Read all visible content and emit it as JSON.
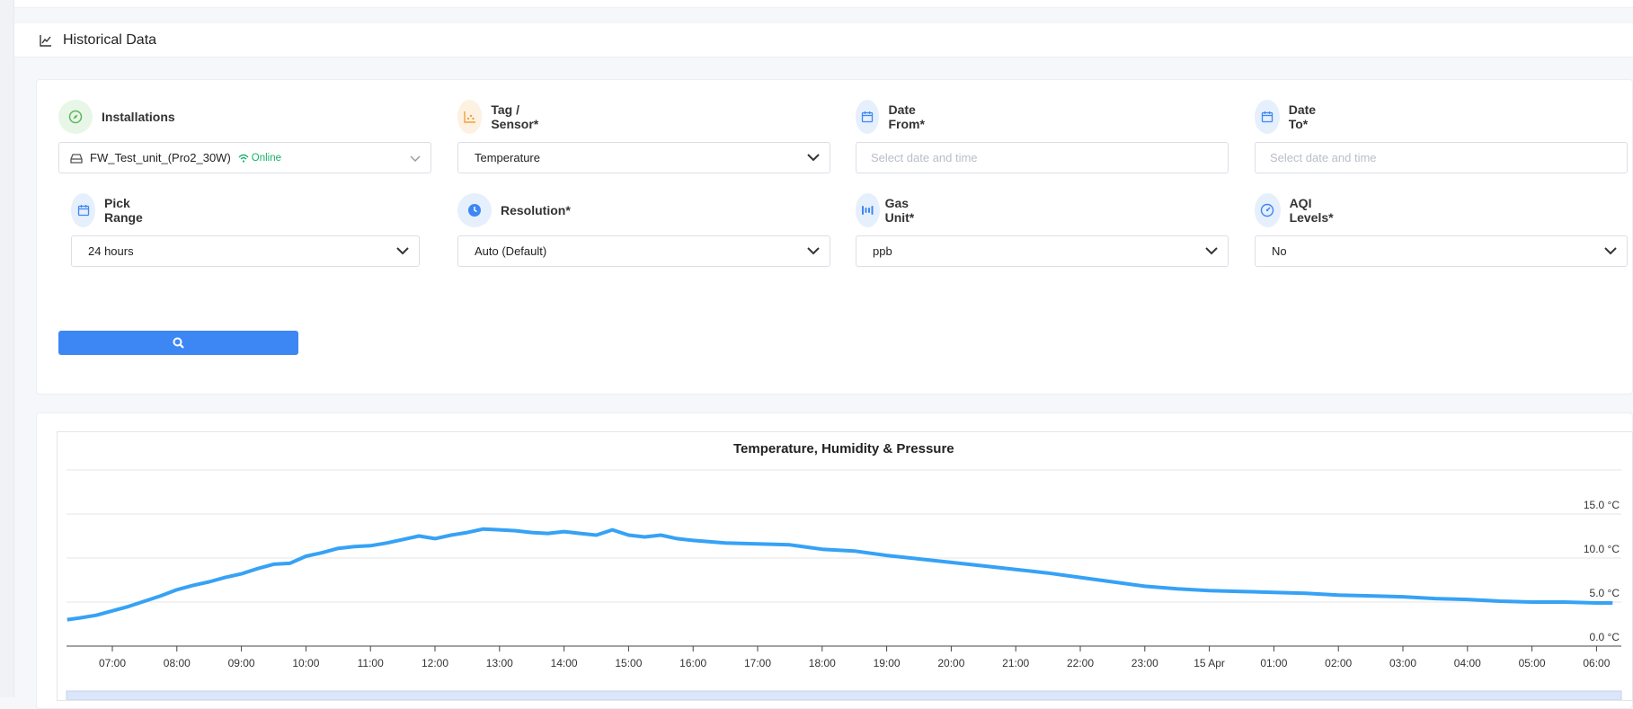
{
  "header": {
    "title": "Historical Data"
  },
  "filters": {
    "installations": {
      "label": "Installations",
      "value": "FW_Test_unit_(Pro2_30W)",
      "status": "Online"
    },
    "tag_sensor": {
      "label": "Tag / Sensor*",
      "value": "Temperature"
    },
    "date_from": {
      "label": "Date From*",
      "placeholder": "Select date and time"
    },
    "date_to": {
      "label": "Date To*",
      "placeholder": "Select date and time"
    },
    "pick_range": {
      "label": "Pick Range",
      "value": "24 hours"
    },
    "resolution": {
      "label": "Resolution*",
      "value": "Auto (Default)"
    },
    "gas_unit": {
      "label": "Gas Unit*",
      "value": "ppb"
    },
    "aqi_levels": {
      "label": "AQI Levels*",
      "value": "No"
    }
  },
  "colors": {
    "accent": "#3d87f5",
    "series": "#36a2f5",
    "online": "#17b26a",
    "install_icon": "#5cb85c",
    "tag_icon": "#f0a040"
  },
  "chart_data": {
    "type": "line",
    "title": "Temperature, Humidity & Pressure",
    "x_ticks": [
      "07:00",
      "08:00",
      "09:00",
      "10:00",
      "11:00",
      "12:00",
      "13:00",
      "14:00",
      "15:00",
      "16:00",
      "17:00",
      "18:00",
      "19:00",
      "20:00",
      "21:00",
      "22:00",
      "23:00",
      "15 Apr",
      "01:00",
      "02:00",
      "03:00",
      "04:00",
      "05:00",
      "06:00"
    ],
    "y_ticks": [
      "0.0 °C",
      "5.0 °C",
      "10.0 °C",
      "15.0 °C"
    ],
    "ylim": [
      0,
      20
    ],
    "grid": true,
    "series": [
      {
        "unit": "°C",
        "x": [
          "06:18",
          "06:30",
          "06:45",
          "07:00",
          "07:15",
          "07:30",
          "07:45",
          "08:00",
          "08:15",
          "08:30",
          "08:45",
          "09:00",
          "09:15",
          "09:30",
          "09:45",
          "10:00",
          "10:15",
          "10:30",
          "10:45",
          "11:00",
          "11:15",
          "11:30",
          "11:45",
          "12:00",
          "12:15",
          "12:30",
          "12:45",
          "13:00",
          "13:15",
          "13:30",
          "13:45",
          "14:00",
          "14:15",
          "14:30",
          "14:45",
          "15:00",
          "15:15",
          "15:30",
          "15:45",
          "16:00",
          "16:30",
          "17:00",
          "17:30",
          "18:00",
          "18:30",
          "19:00",
          "19:30",
          "20:00",
          "20:30",
          "21:00",
          "21:30",
          "22:00",
          "22:30",
          "23:00",
          "23:30",
          "00:00",
          "00:30",
          "01:00",
          "01:30",
          "02:00",
          "02:30",
          "03:00",
          "03:30",
          "04:00",
          "04:30",
          "05:00",
          "05:30",
          "06:00",
          "06:15"
        ],
        "values": [
          3.0,
          3.2,
          3.5,
          4.0,
          4.5,
          5.1,
          5.7,
          6.4,
          6.9,
          7.3,
          7.8,
          8.2,
          8.8,
          9.3,
          9.4,
          10.2,
          10.6,
          11.1,
          11.3,
          11.4,
          11.7,
          12.1,
          12.5,
          12.2,
          12.6,
          12.9,
          13.3,
          13.2,
          13.1,
          12.9,
          12.8,
          13.0,
          12.8,
          12.6,
          13.2,
          12.6,
          12.4,
          12.6,
          12.2,
          12.0,
          11.7,
          11.6,
          11.5,
          11.0,
          10.8,
          10.3,
          9.9,
          9.5,
          9.1,
          8.7,
          8.3,
          7.8,
          7.3,
          6.8,
          6.5,
          6.3,
          6.2,
          6.1,
          6.0,
          5.8,
          5.7,
          5.6,
          5.4,
          5.3,
          5.1,
          5.0,
          5.0,
          4.9,
          4.9
        ]
      }
    ]
  }
}
